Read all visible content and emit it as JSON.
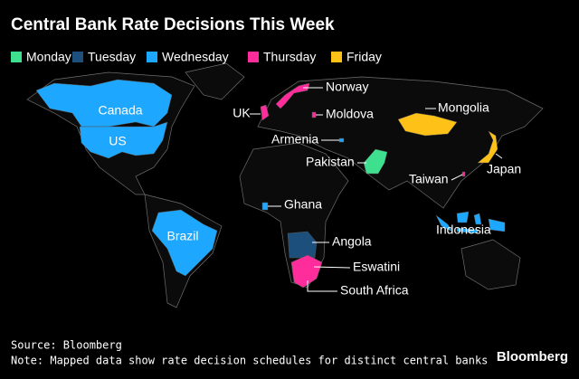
{
  "title": "Central Bank Rate Decisions This Week",
  "legend": [
    {
      "label": "Monday",
      "color": "#3ee08f"
    },
    {
      "label": "Tuesday",
      "color": "#1d4f7c"
    },
    {
      "label": "Wednesday",
      "color": "#1ea7ff"
    },
    {
      "label": "Thursday",
      "color": "#ff2d9b"
    },
    {
      "label": "Friday",
      "color": "#fdc117"
    }
  ],
  "countries": [
    {
      "label": "Canada",
      "color": "#1ea7ff"
    },
    {
      "label": "US",
      "color": "#1ea7ff"
    },
    {
      "label": "Brazil",
      "color": "#1ea7ff"
    },
    {
      "label": "UK",
      "color": "#ff2d9b"
    },
    {
      "label": "Norway",
      "color": "#ff2d9b"
    },
    {
      "label": "Moldova",
      "color": "#ff2d9b"
    },
    {
      "label": "Armenia",
      "color": "#1ea7ff"
    },
    {
      "label": "Pakistan",
      "color": "#3ee08f"
    },
    {
      "label": "Mongolia",
      "color": "#fdc117"
    },
    {
      "label": "Japan",
      "color": "#fdc117"
    },
    {
      "label": "Taiwan",
      "color": "#ff2d9b"
    },
    {
      "label": "Ghana",
      "color": "#1ea7ff"
    },
    {
      "label": "Angola",
      "color": "#1d4f7c"
    },
    {
      "label": "Eswatini",
      "color": "#1d4f7c"
    },
    {
      "label": "South Africa",
      "color": "#ff2d9b"
    },
    {
      "label": "Indonesia",
      "color": "#1ea7ff"
    }
  ],
  "source": "Source: Bloomberg",
  "note": "Note: Mapped data show rate decision schedules for distinct central banks",
  "logo": "Bloomberg"
}
